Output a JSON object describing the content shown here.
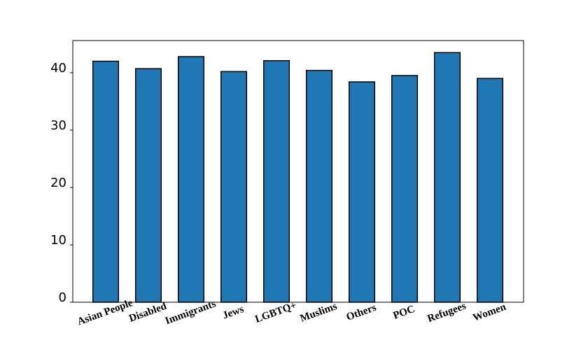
{
  "chart_data": {
    "type": "bar",
    "categories": [
      "Asian People",
      "Disabled",
      "Immigrants",
      "Jews",
      "LGBTQ+",
      "Muslims",
      "Others",
      "POC",
      "Refugees",
      "Women"
    ],
    "values": [
      42.0,
      40.7,
      42.8,
      40.2,
      42.1,
      40.4,
      38.4,
      39.5,
      43.5,
      39.0
    ],
    "color": "#1f77b4",
    "ylim": [
      0,
      45.6
    ],
    "yticks": [
      0,
      10,
      20,
      30,
      40
    ],
    "grid": false
  }
}
